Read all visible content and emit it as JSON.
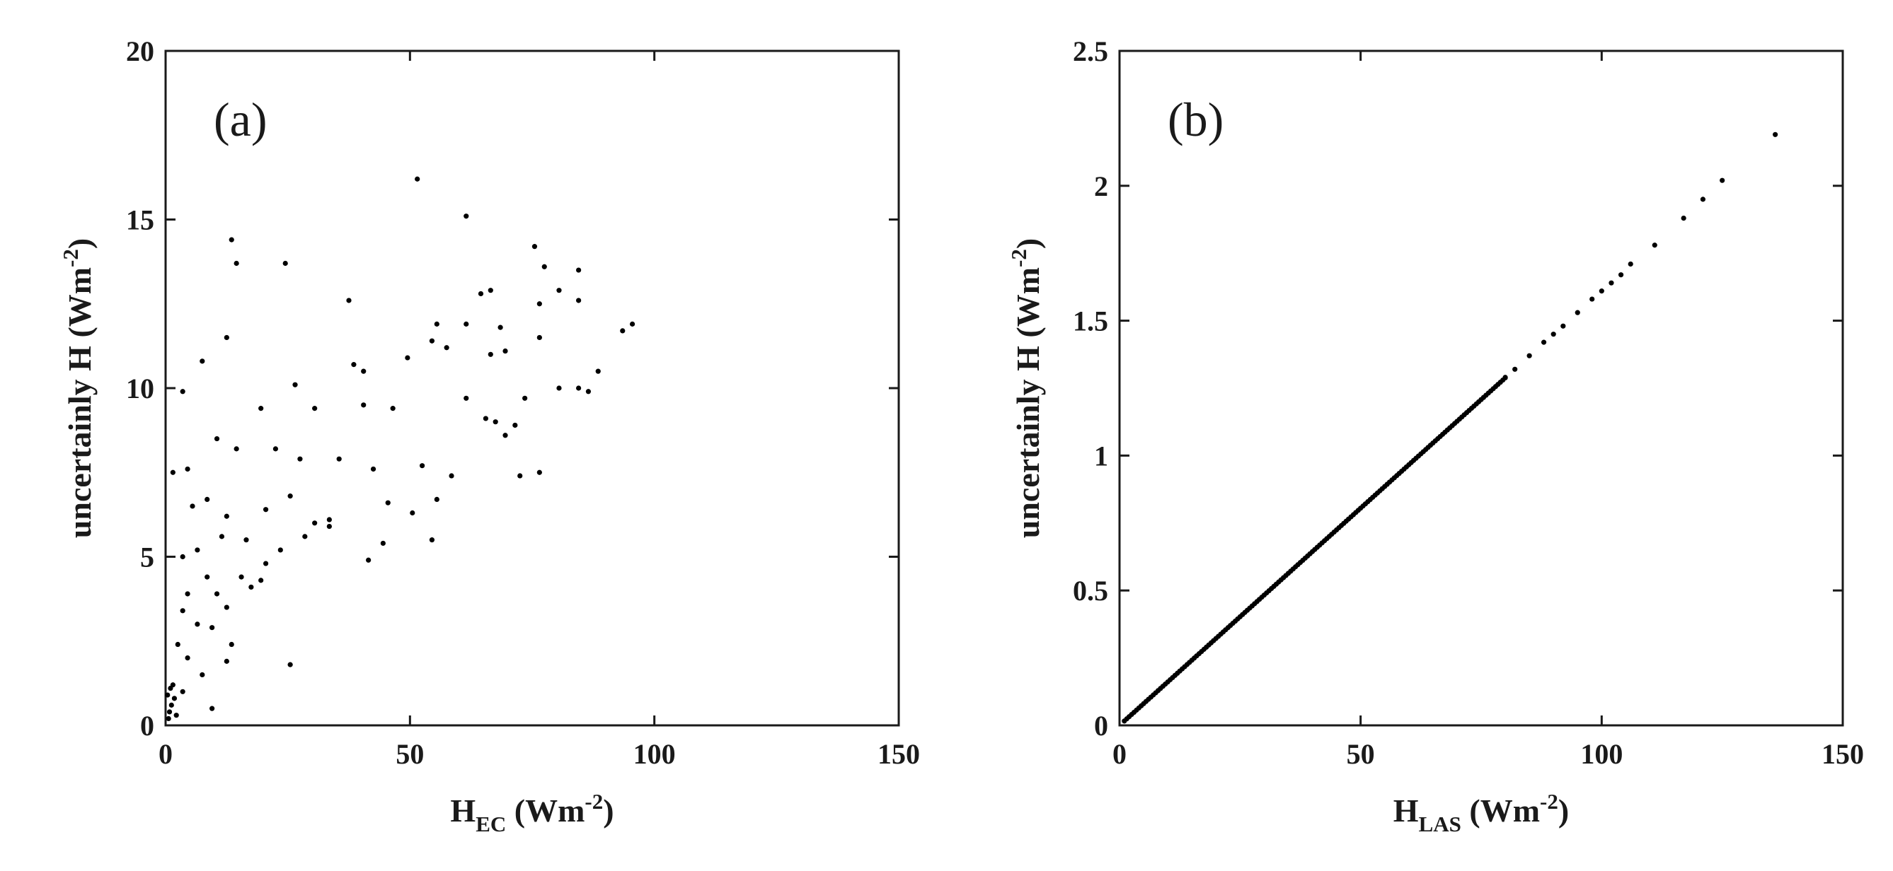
{
  "chart_data": [
    {
      "type": "scatter",
      "panel_label": "(a)",
      "xlabel": {
        "main": "H",
        "sub": "EC",
        "rest": " (Wm",
        "sup": "-2",
        "close": ")"
      },
      "ylabel": {
        "main": "uncertainly H (Wm",
        "sup": "-2",
        "close": ")"
      },
      "xlim": [
        0,
        150
      ],
      "ylim": [
        0,
        20
      ],
      "xticks": [
        0,
        50,
        100,
        150
      ],
      "yticks": [
        0,
        5,
        10,
        15,
        20
      ],
      "xtick_labels": [
        "0",
        "50",
        "100",
        "150"
      ],
      "ytick_labels": [
        "0",
        "5",
        "10",
        "15",
        "20"
      ],
      "grid": false,
      "marker_color": "#000000",
      "points": [
        [
          51.5,
          16.2
        ],
        [
          61.5,
          15.1
        ],
        [
          13.5,
          14.4
        ],
        [
          14.5,
          13.7
        ],
        [
          24.5,
          13.7
        ],
        [
          75.5,
          14.2
        ],
        [
          77.5,
          13.6
        ],
        [
          84.5,
          13.5
        ],
        [
          37.5,
          12.6
        ],
        [
          64.5,
          12.8
        ],
        [
          66.5,
          12.9
        ],
        [
          76.5,
          12.5
        ],
        [
          80.5,
          12.9
        ],
        [
          84.5,
          12.6
        ],
        [
          12.5,
          11.5
        ],
        [
          55.5,
          11.9
        ],
        [
          61.5,
          11.9
        ],
        [
          68.5,
          11.8
        ],
        [
          93.5,
          11.7
        ],
        [
          95.5,
          11.9
        ],
        [
          7.5,
          10.8
        ],
        [
          38.5,
          10.7
        ],
        [
          49.5,
          10.9
        ],
        [
          66.5,
          11.0
        ],
        [
          69.5,
          11.1
        ],
        [
          76.5,
          11.5
        ],
        [
          54.5,
          11.4
        ],
        [
          57.5,
          11.2
        ],
        [
          3.5,
          9.9
        ],
        [
          26.5,
          10.1
        ],
        [
          40.5,
          10.5
        ],
        [
          80.5,
          10.0
        ],
        [
          84.5,
          10.0
        ],
        [
          86.5,
          9.9
        ],
        [
          88.5,
          10.5
        ],
        [
          73.5,
          9.7
        ],
        [
          10.5,
          8.5
        ],
        [
          19.5,
          9.4
        ],
        [
          30.5,
          9.4
        ],
        [
          40.5,
          9.5
        ],
        [
          46.5,
          9.4
        ],
        [
          61.5,
          9.7
        ],
        [
          65.5,
          9.1
        ],
        [
          67.5,
          9.0
        ],
        [
          69.5,
          8.6
        ],
        [
          71.5,
          8.9
        ],
        [
          1.5,
          7.5
        ],
        [
          4.5,
          7.6
        ],
        [
          14.5,
          8.2
        ],
        [
          22.5,
          8.2
        ],
        [
          27.5,
          7.9
        ],
        [
          35.5,
          7.9
        ],
        [
          42.5,
          7.6
        ],
        [
          52.5,
          7.7
        ],
        [
          58.5,
          7.4
        ],
        [
          76.5,
          7.5
        ],
        [
          72.5,
          7.4
        ],
        [
          5.5,
          6.5
        ],
        [
          8.5,
          6.7
        ],
        [
          12.5,
          6.2
        ],
        [
          20.5,
          6.4
        ],
        [
          25.5,
          6.8
        ],
        [
          30.5,
          6.0
        ],
        [
          33.5,
          6.1
        ],
        [
          45.5,
          6.6
        ],
        [
          50.5,
          6.3
        ],
        [
          55.5,
          6.7
        ],
        [
          3.5,
          5.0
        ],
        [
          6.5,
          5.2
        ],
        [
          11.5,
          5.6
        ],
        [
          16.5,
          5.5
        ],
        [
          20.5,
          4.8
        ],
        [
          23.5,
          5.2
        ],
        [
          28.5,
          5.6
        ],
        [
          33.5,
          5.9
        ],
        [
          41.5,
          4.9
        ],
        [
          44.5,
          5.4
        ],
        [
          54.5,
          5.5
        ],
        [
          4.5,
          3.9
        ],
        [
          8.5,
          4.4
        ],
        [
          10.5,
          3.9
        ],
        [
          12.5,
          3.5
        ],
        [
          15.5,
          4.4
        ],
        [
          17.5,
          4.1
        ],
        [
          19.5,
          4.3
        ],
        [
          3.5,
          3.4
        ],
        [
          6.5,
          3.0
        ],
        [
          9.5,
          2.9
        ],
        [
          13.5,
          2.4
        ],
        [
          2.5,
          2.4
        ],
        [
          4.5,
          2.0
        ],
        [
          7.5,
          1.5
        ],
        [
          12.5,
          1.9
        ],
        [
          3.5,
          1.0
        ],
        [
          9.5,
          0.5
        ],
        [
          25.5,
          1.8
        ],
        [
          1.5,
          1.2
        ],
        [
          0.8,
          0.4
        ],
        [
          1.2,
          0.6
        ],
        [
          0.6,
          0.2
        ],
        [
          1.8,
          0.8
        ],
        [
          0.4,
          0.9
        ],
        [
          2.2,
          0.3
        ],
        [
          1.0,
          1.1
        ]
      ]
    },
    {
      "type": "scatter",
      "panel_label": "(b)",
      "xlabel": {
        "main": "H",
        "sub": "LAS",
        "rest": " (Wm",
        "sup": "-2",
        "close": ")"
      },
      "ylabel": {
        "main": "uncertainly H (Wm",
        "sup": "-2",
        "close": ")"
      },
      "xlim": [
        0,
        150
      ],
      "ylim": [
        0,
        2.5
      ],
      "xticks": [
        0,
        50,
        100,
        150
      ],
      "yticks": [
        0,
        0.5,
        1,
        1.5,
        2,
        2.5
      ],
      "xtick_labels": [
        "0",
        "50",
        "100",
        "150"
      ],
      "ytick_labels": [
        "0",
        "0.5",
        "1",
        "1.5",
        "2",
        "2.5"
      ],
      "grid": false,
      "marker_color": "#000000",
      "trend": {
        "slope": 0.0161,
        "x_start": 1,
        "x_end": 80,
        "step": 0.5
      },
      "points": [
        [
          80,
          1.29
        ],
        [
          82,
          1.32
        ],
        [
          85,
          1.37
        ],
        [
          88,
          1.42
        ],
        [
          90,
          1.45
        ],
        [
          92,
          1.48
        ],
        [
          95,
          1.53
        ],
        [
          98,
          1.58
        ],
        [
          100,
          1.61
        ],
        [
          102,
          1.64
        ],
        [
          104,
          1.67
        ],
        [
          106,
          1.71
        ],
        [
          111,
          1.78
        ],
        [
          117,
          1.88
        ],
        [
          121,
          1.95
        ],
        [
          125,
          2.02
        ],
        [
          136,
          2.19
        ]
      ]
    }
  ]
}
